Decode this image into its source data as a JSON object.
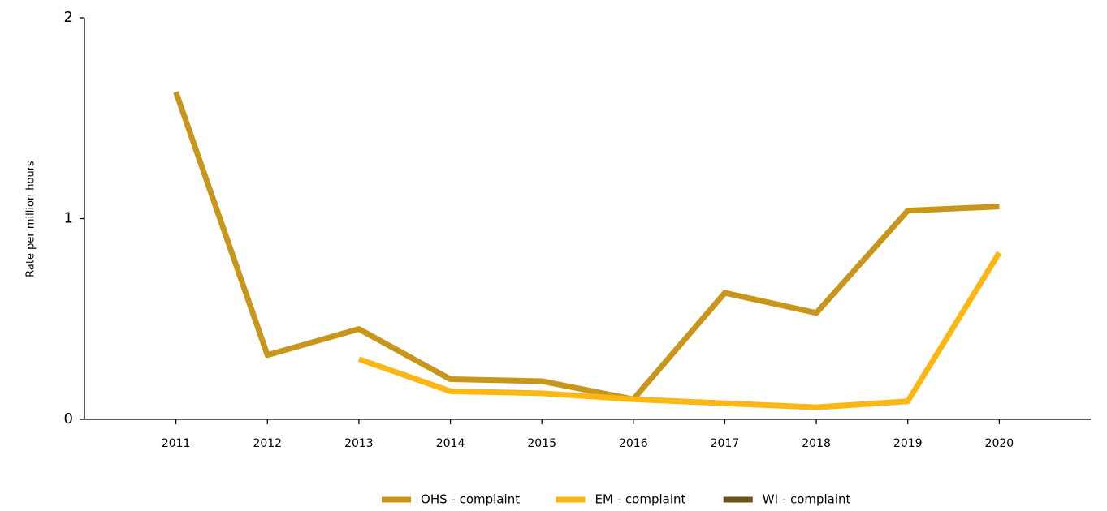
{
  "chart_data": {
    "type": "line",
    "y_label": "Rate per million hours",
    "x": [
      2011,
      2012,
      2013,
      2014,
      2015,
      2016,
      2017,
      2018,
      2019,
      2020
    ],
    "xlim": [
      2010,
      2021
    ],
    "xticks": [
      2011,
      2012,
      2013,
      2014,
      2015,
      2016,
      2017,
      2018,
      2019,
      2020
    ],
    "ylim": [
      0,
      2
    ],
    "yticks": [
      0,
      1,
      2
    ],
    "grid": false,
    "legend": "bottom",
    "series": [
      {
        "name": "OHS - complaint",
        "color": "#c8961a",
        "values": [
          1.63,
          0.32,
          0.45,
          0.2,
          0.19,
          0.1,
          0.63,
          0.53,
          1.04,
          1.06
        ]
      },
      {
        "name": "EM - complaint",
        "color": "#fdb714",
        "values": [
          null,
          null,
          0.3,
          0.14,
          0.13,
          0.1,
          0.08,
          0.06,
          0.09,
          0.83
        ]
      },
      {
        "name": "WI - complaint",
        "color": "#6b5417",
        "values": [
          null,
          null,
          null,
          null,
          null,
          null,
          null,
          null,
          null,
          null
        ]
      }
    ]
  }
}
